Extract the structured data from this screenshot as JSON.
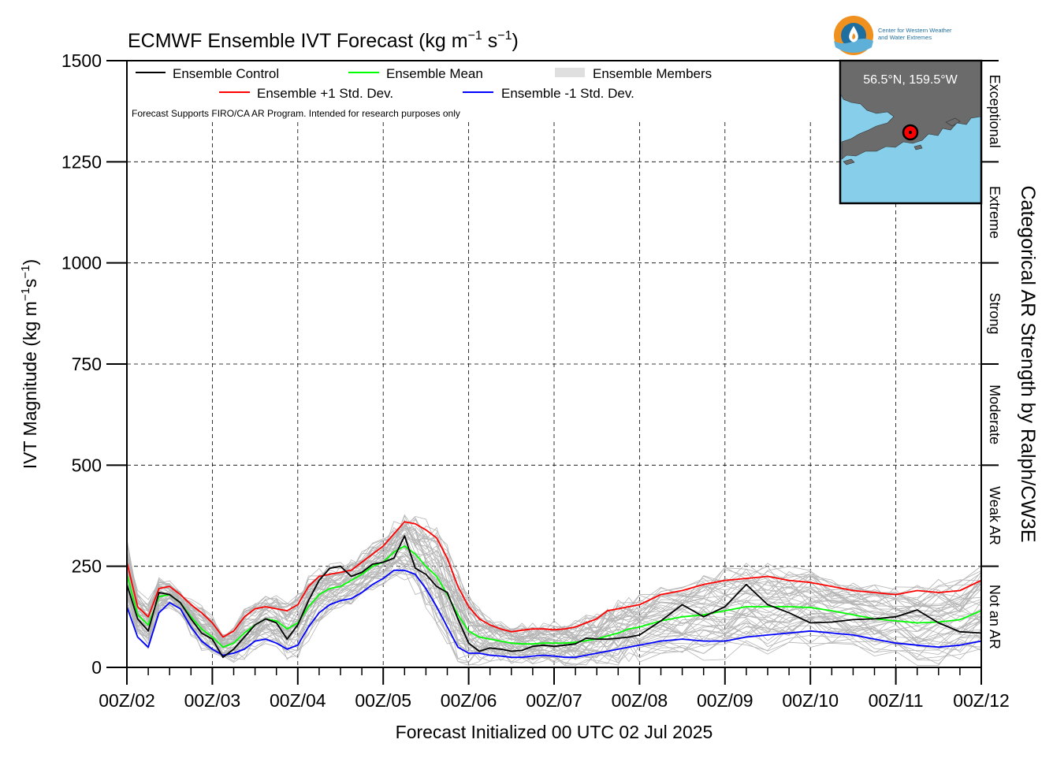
{
  "logo": {
    "line1": "Center for Western Weather",
    "line2": "and Water Extremes",
    "colors": {
      "outer": "#f0901e",
      "inner": "#1e6fa0",
      "wave": "#5fb0d8"
    }
  },
  "inset_map": {
    "label": "56.5°N, 159.5°W",
    "ocean_color": "#87ceeb",
    "land_color": "#6b6b6b",
    "marker_color": "#ff0000"
  },
  "chart_data": {
    "type": "line",
    "title_main": "ECMWF Ensemble IVT Forecast (kg m",
    "title_sup1": "−1",
    "title_mid": " s",
    "title_sup2": "−1",
    "title_end": ")",
    "ylabel_main": "IVT Magnitude (kg m",
    "ylabel_sup1": "−1",
    "ylabel_mid": "s",
    "ylabel_sup2": "−1",
    "ylabel_end": ")",
    "xlabel": "Forecast Initialized 00 UTC 02 Jul 2025",
    "right_axis_label": "Categorical AR Strength by Ralph/CW3E",
    "note": "Forecast Supports FIRO/CA AR Program. Intended for research purposes only",
    "xlim": [
      0,
      240
    ],
    "ylim": [
      0,
      1500
    ],
    "grid": true,
    "x_unit": "forecast hour",
    "x_ticks": [
      {
        "hour": 0,
        "label": "00Z/02"
      },
      {
        "hour": 24,
        "label": "00Z/03"
      },
      {
        "hour": 48,
        "label": "00Z/04"
      },
      {
        "hour": 72,
        "label": "00Z/05"
      },
      {
        "hour": 96,
        "label": "00Z/06"
      },
      {
        "hour": 120,
        "label": "00Z/07"
      },
      {
        "hour": 144,
        "label": "00Z/08"
      },
      {
        "hour": 168,
        "label": "00Z/09"
      },
      {
        "hour": 192,
        "label": "00Z/10"
      },
      {
        "hour": 216,
        "label": "00Z/11"
      },
      {
        "hour": 240,
        "label": "00Z/12"
      }
    ],
    "y_ticks": [
      0,
      250,
      500,
      750,
      1000,
      1250,
      1500
    ],
    "categories": [
      {
        "label": "Not an AR",
        "from": 0,
        "to": 250
      },
      {
        "label": "Weak AR",
        "from": 250,
        "to": 500
      },
      {
        "label": "Moderate",
        "from": 500,
        "to": 750
      },
      {
        "label": "Strong",
        "from": 750,
        "to": 1000
      },
      {
        "label": "Extreme",
        "from": 1000,
        "to": 1250
      },
      {
        "label": "Exceptional",
        "from": 1250,
        "to": 1500
      }
    ],
    "legend": {
      "control": "Ensemble Control",
      "mean": "Ensemble Mean",
      "members": "Ensemble Members",
      "plus": "Ensemble +1 Std. Dev.",
      "minus": "Ensemble -1 Std. Dev."
    },
    "series": [
      {
        "name": "Ensemble Control",
        "color": "#000000",
        "x": [
          0,
          3,
          6,
          9,
          12,
          15,
          18,
          21,
          24,
          27,
          30,
          33,
          36,
          39,
          42,
          45,
          48,
          51,
          54,
          57,
          60,
          63,
          66,
          69,
          72,
          75,
          78,
          81,
          84,
          87,
          90,
          93,
          96,
          99,
          102,
          105,
          108,
          111,
          114,
          117,
          120,
          123,
          126,
          129,
          132,
          135,
          138,
          141,
          144,
          150,
          156,
          162,
          168,
          174,
          180,
          186,
          192,
          198,
          204,
          210,
          216,
          222,
          228,
          234,
          240
        ],
        "y": [
          205,
          120,
          90,
          185,
          180,
          160,
          120,
          85,
          70,
          25,
          45,
          75,
          105,
          120,
          110,
          70,
          105,
          165,
          215,
          245,
          250,
          225,
          235,
          255,
          260,
          270,
          325,
          245,
          230,
          200,
          185,
          120,
          60,
          40,
          48,
          45,
          40,
          42,
          52,
          55,
          52,
          55,
          58,
          72,
          70,
          70,
          72,
          75,
          80,
          115,
          155,
          125,
          150,
          205,
          155,
          135,
          110,
          112,
          118,
          120,
          125,
          142,
          110,
          88,
          85
        ]
      },
      {
        "name": "Ensemble Mean",
        "color": "#00ff00",
        "x": [
          0,
          3,
          6,
          9,
          12,
          15,
          18,
          21,
          24,
          27,
          30,
          33,
          36,
          39,
          42,
          45,
          48,
          51,
          54,
          57,
          60,
          63,
          66,
          69,
          72,
          75,
          78,
          81,
          84,
          87,
          90,
          93,
          96,
          99,
          102,
          105,
          108,
          111,
          114,
          117,
          120,
          123,
          126,
          129,
          132,
          135,
          138,
          141,
          144,
          150,
          156,
          162,
          168,
          174,
          180,
          186,
          192,
          198,
          204,
          210,
          216,
          222,
          228,
          234,
          240
        ],
        "y": [
          230,
          130,
          105,
          175,
          180,
          160,
          125,
          95,
          75,
          50,
          60,
          85,
          105,
          120,
          115,
          95,
          110,
          150,
          180,
          195,
          200,
          215,
          230,
          250,
          260,
          285,
          300,
          280,
          250,
          225,
          180,
          130,
          90,
          75,
          70,
          65,
          60,
          58,
          58,
          60,
          60,
          60,
          62,
          66,
          70,
          78,
          85,
          95,
          100,
          115,
          125,
          130,
          140,
          150,
          150,
          150,
          148,
          140,
          130,
          120,
          115,
          110,
          112,
          118,
          140
        ]
      },
      {
        "name": "Ensemble +1 Std. Dev.",
        "color": "#ff0000",
        "x": [
          0,
          3,
          6,
          9,
          12,
          15,
          18,
          21,
          24,
          27,
          30,
          33,
          36,
          39,
          42,
          45,
          48,
          51,
          54,
          57,
          60,
          63,
          66,
          69,
          72,
          75,
          78,
          81,
          84,
          87,
          90,
          93,
          96,
          99,
          102,
          105,
          108,
          111,
          114,
          117,
          120,
          123,
          126,
          129,
          132,
          135,
          138,
          141,
          144,
          150,
          156,
          162,
          168,
          174,
          180,
          186,
          192,
          198,
          204,
          210,
          216,
          222,
          228,
          234,
          240
        ],
        "y": [
          260,
          150,
          125,
          195,
          200,
          180,
          155,
          135,
          110,
          75,
          90,
          125,
          145,
          150,
          145,
          140,
          155,
          200,
          225,
          230,
          235,
          240,
          260,
          280,
          300,
          330,
          360,
          355,
          340,
          320,
          270,
          200,
          150,
          120,
          105,
          95,
          88,
          92,
          95,
          95,
          93,
          95,
          100,
          110,
          120,
          140,
          145,
          150,
          155,
          180,
          190,
          205,
          215,
          220,
          225,
          215,
          210,
          200,
          190,
          185,
          180,
          190,
          185,
          190,
          215
        ]
      },
      {
        "name": "Ensemble -1 Std. Dev.",
        "color": "#0000ff",
        "x": [
          0,
          3,
          6,
          9,
          12,
          15,
          18,
          21,
          24,
          27,
          30,
          33,
          36,
          39,
          42,
          45,
          48,
          51,
          54,
          57,
          60,
          63,
          66,
          69,
          72,
          75,
          78,
          81,
          84,
          87,
          90,
          93,
          96,
          99,
          102,
          105,
          108,
          111,
          114,
          117,
          120,
          123,
          126,
          129,
          132,
          135,
          138,
          141,
          144,
          150,
          156,
          162,
          168,
          174,
          180,
          186,
          192,
          198,
          204,
          210,
          216,
          222,
          228,
          234,
          240
        ],
        "y": [
          150,
          75,
          50,
          135,
          160,
          145,
          100,
          65,
          45,
          30,
          35,
          45,
          65,
          70,
          60,
          45,
          55,
          100,
          135,
          155,
          165,
          170,
          185,
          205,
          220,
          240,
          240,
          230,
          195,
          150,
          100,
          50,
          35,
          35,
          30,
          28,
          25,
          25,
          28,
          30,
          28,
          25,
          25,
          30,
          35,
          40,
          45,
          50,
          55,
          65,
          70,
          65,
          65,
          75,
          80,
          85,
          90,
          85,
          80,
          70,
          60,
          55,
          50,
          55,
          65
        ]
      }
    ]
  }
}
